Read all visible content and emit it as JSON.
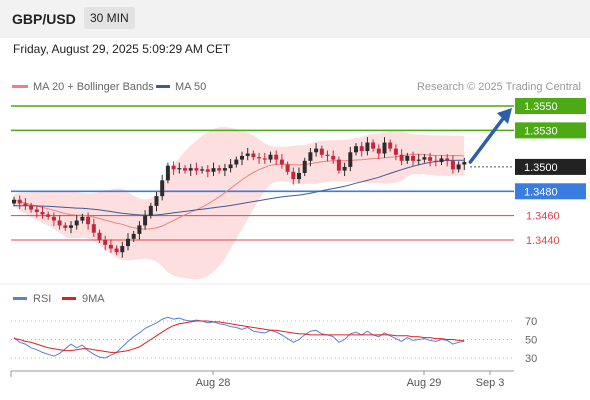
{
  "header": {
    "pair": "GBP/USD",
    "timeframe": "30 MIN",
    "datetime": "Friday, August 29, 2025 5:09:29 AM CET"
  },
  "watermark": "Research © 2025 Trading Central",
  "colors": {
    "up_candle": "#2c2c2c",
    "down_candle": "#c8243b",
    "ma20": "#f08080",
    "bollinger_fill": "#fdd9d9",
    "ma50": "#3d5a99",
    "resistance": "#4caa14",
    "pivot": "#3a7de0",
    "support": "#e3414f",
    "rsi": "#5b7fd6",
    "rsi_ma": "#e02020",
    "arrow": "#2d5fa8"
  },
  "chart_data": [
    {
      "type": "candlestick",
      "legend": [
        {
          "name": "MA 20 + Bollinger Bands",
          "color": "#f08080"
        },
        {
          "name": "MA 50",
          "color": "#3d5a99"
        }
      ],
      "ylim": [
        1.3415,
        1.3575
      ],
      "x_ticks": [
        "Aug 28",
        "Aug 29",
        "Sep 3"
      ],
      "levels": [
        {
          "value": 1.355,
          "label": "1.3550",
          "kind": "resistance"
        },
        {
          "value": 1.353,
          "label": "1.3530",
          "kind": "resistance"
        },
        {
          "value": 1.35,
          "label": "1.3500",
          "kind": "last"
        },
        {
          "value": 1.348,
          "label": "1.3480",
          "kind": "pivot"
        },
        {
          "value": 1.346,
          "label": "1.3460",
          "kind": "support"
        },
        {
          "value": 1.344,
          "label": "1.3440",
          "kind": "support"
        }
      ],
      "closes": [
        1.3473,
        1.347,
        1.3468,
        1.3465,
        1.3463,
        1.3461,
        1.3459,
        1.3456,
        1.3452,
        1.345,
        1.3452,
        1.3456,
        1.3459,
        1.3453,
        1.3446,
        1.344,
        1.3436,
        1.3433,
        1.343,
        1.3435,
        1.3441,
        1.3445,
        1.3452,
        1.346,
        1.3468,
        1.3476,
        1.3489,
        1.3501,
        1.3498,
        1.3499,
        1.3497,
        1.3499,
        1.3497,
        1.3498,
        1.3496,
        1.3499,
        1.3497,
        1.3499,
        1.3502,
        1.3506,
        1.3509,
        1.3511,
        1.3508,
        1.3507,
        1.3506,
        1.351,
        1.3506,
        1.3502,
        1.3496,
        1.349,
        1.3495,
        1.3505,
        1.3512,
        1.3515,
        1.351,
        1.3509,
        1.3506,
        1.3497,
        1.35,
        1.3512,
        1.3517,
        1.3513,
        1.352,
        1.3515,
        1.3511,
        1.352,
        1.3515,
        1.351,
        1.3505,
        1.3509,
        1.3505,
        1.3506,
        1.3508,
        1.3505,
        1.3504,
        1.3507,
        1.3505,
        1.3498,
        1.3502,
        1.3504
      ]
    },
    {
      "type": "line",
      "legend": [
        {
          "name": "RSI",
          "color": "#5b7fd6"
        },
        {
          "name": "9MA",
          "color": "#e02020"
        }
      ],
      "ylim": [
        20,
        80
      ],
      "y_ticks": [
        70,
        50,
        30
      ],
      "series": [
        {
          "name": "RSI",
          "values": [
            52,
            47,
            45,
            41,
            39,
            36,
            34,
            32,
            35,
            40,
            45,
            41,
            44,
            38,
            34,
            31,
            30,
            33,
            36,
            42,
            48,
            53,
            57,
            62,
            65,
            68,
            72,
            74,
            72,
            73,
            71,
            70,
            71,
            70,
            68,
            69,
            67,
            66,
            64,
            63,
            61,
            63,
            59,
            58,
            57,
            60,
            58,
            55,
            51,
            47,
            50,
            55,
            59,
            60,
            56,
            55,
            53,
            47,
            50,
            56,
            58,
            55,
            59,
            55,
            53,
            57,
            54,
            51,
            48,
            52,
            49,
            50,
            51,
            49,
            48,
            50,
            49,
            45,
            47,
            48
          ]
        },
        {
          "name": "9MA",
          "values": [
            51,
            50,
            48,
            47,
            45,
            43,
            41,
            40,
            39,
            38,
            38,
            39,
            40,
            40,
            39,
            38,
            37,
            36,
            36,
            37,
            38,
            40,
            42,
            46,
            50,
            54,
            58,
            62,
            65,
            67,
            68,
            69,
            70,
            70,
            70,
            69,
            69,
            68,
            67,
            66,
            65,
            64,
            63,
            62,
            61,
            60,
            60,
            59,
            58,
            57,
            56,
            56,
            55,
            55,
            55,
            55,
            55,
            55,
            55,
            55,
            55,
            55,
            55,
            55,
            55,
            55,
            55,
            54,
            54,
            54,
            53,
            53,
            52,
            52,
            51,
            51,
            50,
            50,
            49,
            49
          ]
        }
      ]
    }
  ]
}
